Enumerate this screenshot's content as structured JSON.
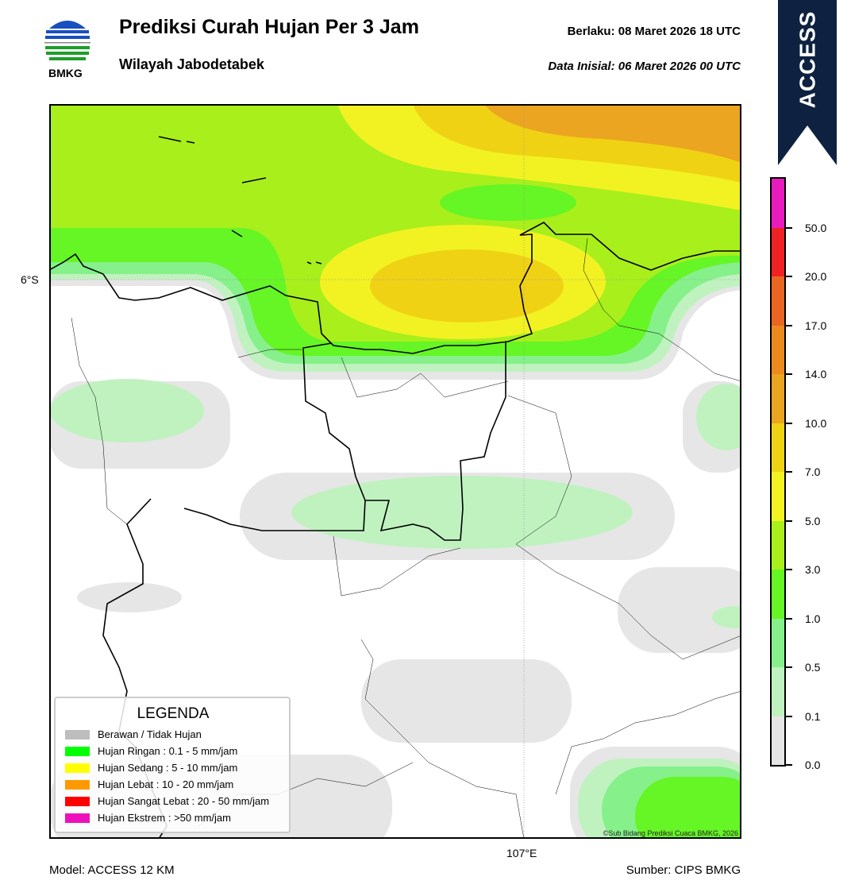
{
  "header": {
    "title": "Prediksi Curah Hujan Per 3 Jam",
    "subtitle": "Wilayah Jabodetabek",
    "valid": "Berlaku:  08 Maret 2026 18 UTC",
    "initial": "Data Inisial:  06 Maret 2026 00 UTC",
    "logo": "BMKG",
    "model_badge": "ACCESS"
  },
  "map": {
    "lat_label": "6°S",
    "lon_label": "107°E",
    "copyright": "©Sub Bidang Prediksi Cuaca BMKG, 2026"
  },
  "legend": {
    "title": "LEGENDA",
    "items": [
      {
        "label": "Berawan / Tidak Hujan",
        "color": "#bdbdbd"
      },
      {
        "label": "Hujan Ringan : 0.1 - 5 mm/jam",
        "color": "#00ff00"
      },
      {
        "label": "Hujan Sedang : 5 - 10 mm/jam",
        "color": "#ffff00"
      },
      {
        "label": "Hujan Lebat : 10 - 20 mm/jam",
        "color": "#ff9900"
      },
      {
        "label": "Hujan Sangat Lebat : 20 - 50 mm/jam",
        "color": "#ff0000"
      },
      {
        "label": "Hujan Ekstrem : >50 mm/jam",
        "color": "#ee11bb"
      }
    ]
  },
  "colorbar": {
    "ticks": [
      "0.0",
      "0.1",
      "0.5",
      "1.0",
      "3.0",
      "5.0",
      "7.0",
      "10.0",
      "14.0",
      "17.0",
      "20.0",
      "50.0"
    ],
    "colors": [
      "#e6e6e6",
      "#c0f2c0",
      "#86f08a",
      "#66f525",
      "#a8ef1c",
      "#f2f222",
      "#f0d215",
      "#eba520",
      "#ec8a20",
      "#e96622",
      "#ee2222",
      "#e61cbf"
    ]
  },
  "footer": {
    "model": "Model: ACCESS 12 KM",
    "source": "Sumber: CIPS BMKG"
  }
}
